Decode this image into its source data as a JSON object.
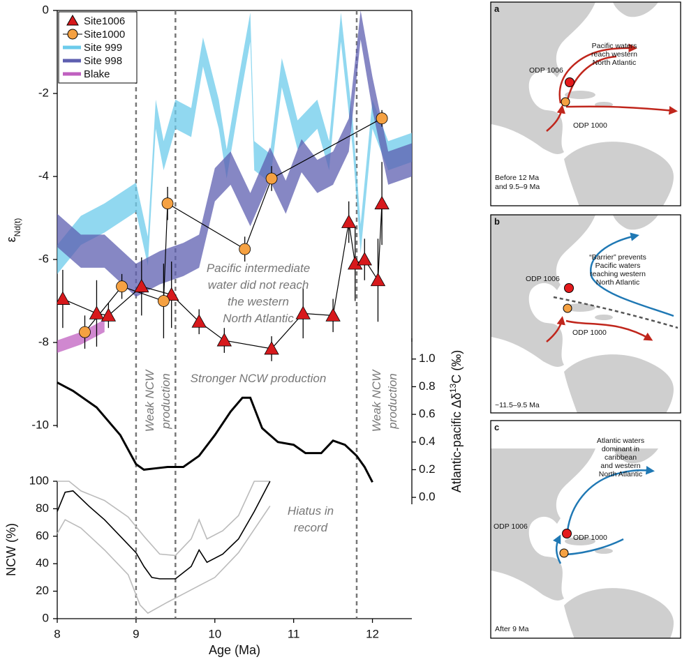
{
  "chart_data": [
    {
      "type": "line",
      "ylabel": {
        "main": "ε",
        "sub": "Nd(t)"
      },
      "xlim": [
        8,
        12.5
      ],
      "ylim": [
        -10.05,
        0
      ],
      "yticks": [
        0,
        -2,
        -4,
        -6,
        -8,
        -10
      ],
      "legend": "upper left",
      "vlines": [
        9.0,
        9.5,
        11.8
      ],
      "series": [
        {
          "name": "Site 999",
          "color": "#6ccbeb",
          "x": [
            8.0,
            8.3,
            8.6,
            9.0,
            9.15,
            9.25,
            9.35,
            9.5,
            9.7,
            9.85,
            10.05,
            10.15,
            10.3,
            10.45,
            10.5,
            10.7,
            10.85,
            11.05,
            11.3,
            11.45,
            11.6,
            11.75,
            11.85,
            12.0,
            12.2,
            12.5
          ],
          "lower": [
            -6.35,
            -5.65,
            -5.35,
            -4.85,
            -6.15,
            -2.85,
            -3.85,
            -2.85,
            -3.05,
            -1.35,
            -2.85,
            -4.05,
            -2.35,
            -0.75,
            -3.85,
            -4.15,
            -1.85,
            -3.35,
            -2.85,
            -3.85,
            -0.75,
            -3.35,
            -5.85,
            -2.85,
            -3.85,
            -3.65
          ],
          "upper": [
            -5.65,
            -4.95,
            -4.65,
            -4.15,
            -5.45,
            -2.15,
            -3.15,
            -2.15,
            -2.35,
            -0.65,
            -2.15,
            -3.35,
            -1.65,
            -0.05,
            -3.15,
            -3.45,
            -1.15,
            -2.65,
            -2.15,
            -3.15,
            -0.05,
            -2.65,
            -5.15,
            -2.15,
            -3.15,
            -2.95
          ]
        },
        {
          "name": "Site 998",
          "color": "#5e5fb0",
          "x": [
            8.0,
            8.3,
            8.6,
            9.0,
            9.3,
            9.6,
            9.8,
            10.0,
            10.2,
            10.45,
            10.7,
            10.9,
            11.1,
            11.3,
            11.5,
            11.7,
            11.85,
            12.0,
            12.2,
            12.5
          ],
          "lower": [
            -5.7,
            -6.2,
            -6.2,
            -6.9,
            -6.6,
            -6.4,
            -6.2,
            -4.6,
            -4.2,
            -5.2,
            -4.1,
            -4.9,
            -3.9,
            -4.4,
            -4.2,
            -3.4,
            -0.7,
            -2.4,
            -4.2,
            -4.0
          ],
          "upper": [
            -4.9,
            -5.4,
            -5.4,
            -6.1,
            -5.8,
            -5.6,
            -5.4,
            -3.8,
            -3.4,
            -4.4,
            -3.3,
            -4.1,
            -3.1,
            -3.6,
            -3.4,
            -2.6,
            0,
            -1.6,
            -3.4,
            -3.2
          ]
        },
        {
          "name": "Blake",
          "color": "#c060c0",
          "x": [
            8.0,
            8.3,
            8.6
          ],
          "lower": [
            -8.25,
            -8.05,
            -7.75
          ],
          "upper": [
            -7.95,
            -7.75,
            -7.45
          ]
        },
        {
          "name": "Site1006",
          "color": "#d7191c",
          "line_color": "#000000",
          "marker": "triangle",
          "x": [
            8.07,
            8.5,
            8.65,
            9.07,
            9.45,
            9.8,
            10.12,
            10.72,
            11.12,
            11.5,
            11.7,
            11.78,
            11.9,
            12.07,
            12.12
          ],
          "values": [
            -6.95,
            -7.3,
            -7.35,
            -6.65,
            -6.85,
            -7.5,
            -7.95,
            -8.15,
            -7.3,
            -7.35,
            -5.1,
            -6.1,
            -6.0,
            -6.5,
            -4.65
          ],
          "errors": [
            0.7,
            0.8,
            0.3,
            0.7,
            0.8,
            0.3,
            0.3,
            0.3,
            0.6,
            0.4,
            0.5,
            0.9,
            0.5,
            1.0,
            1.0
          ]
        },
        {
          "name": "Site1000",
          "color": "#f5a142",
          "line_color": "#000000",
          "marker": "circle",
          "x": [
            8.35,
            8.82,
            9.35,
            9.4,
            10.38,
            10.72,
            12.12
          ],
          "values": [
            -7.75,
            -6.65,
            -7.0,
            -4.65,
            -5.75,
            -4.05,
            -2.6
          ],
          "errors": [
            0.4,
            0.3,
            0.9,
            0.4,
            0.3,
            0.3,
            0.2
          ]
        }
      ],
      "annotations": [
        {
          "text": [
            "Pacific intermediate",
            "water did not reach",
            "the western",
            "North Atlantic"
          ]
        },
        {
          "text": [
            "Stronger NCW production"
          ]
        },
        {
          "text": [
            "Weak NCW",
            "production"
          ]
        },
        {
          "text": [
            "Weak NCW",
            "production"
          ]
        }
      ]
    },
    {
      "type": "line",
      "ylabel": {
        "main": "Atlantic-pacific Δδ",
        "sup": "13",
        "end": "C (‰)"
      },
      "xlim": [
        8,
        12.5
      ],
      "ylim": [
        -0.05,
        1.15
      ],
      "yticks": [
        {
          "value": 1.0,
          "label": "1.0"
        },
        0.8,
        0.6,
        0.4,
        0.2,
        {
          "value": 0.0,
          "label": "0.0"
        }
      ],
      "series": [
        {
          "color": "#000000",
          "x": [
            8.0,
            8.2,
            8.5,
            8.8,
            9.0,
            9.1,
            9.25,
            9.4,
            9.6,
            9.8,
            10.0,
            10.2,
            10.35,
            10.45,
            10.6,
            10.8,
            11.0,
            11.15,
            11.35,
            11.5,
            11.65,
            11.8,
            11.9,
            12.0
          ],
          "values": [
            0.83,
            0.77,
            0.65,
            0.45,
            0.24,
            0.2,
            0.21,
            0.22,
            0.22,
            0.3,
            0.45,
            0.62,
            0.72,
            0.72,
            0.5,
            0.4,
            0.38,
            0.32,
            0.32,
            0.41,
            0.38,
            0.3,
            0.22,
            0.11
          ]
        }
      ]
    },
    {
      "type": "line",
      "ylabel": "NCW (%)",
      "xlabel": "Age (Ma)",
      "xlim": [
        8,
        12.5
      ],
      "xticks": [
        8,
        9,
        10,
        11,
        12
      ],
      "ylim": [
        0,
        100
      ],
      "yticks": [
        0,
        20,
        40,
        60,
        80,
        100
      ],
      "series": [
        {
          "color": "#bbbbbb",
          "x": [
            8.0,
            8.15,
            8.3,
            8.6,
            8.9,
            9.1,
            9.3,
            9.5,
            9.7,
            9.8,
            9.9,
            10.1,
            10.3,
            10.5,
            10.7
          ],
          "values": [
            100,
            100,
            93,
            86,
            74,
            60,
            47,
            46,
            58,
            72,
            58,
            64,
            75,
            100,
            100
          ]
        },
        {
          "color": "#bbbbbb",
          "x": [
            8.0,
            8.1,
            8.3,
            8.6,
            8.9,
            9.05,
            9.15,
            9.4,
            9.6,
            9.8,
            10.0,
            10.3,
            10.7
          ],
          "values": [
            62,
            72,
            66,
            50,
            32,
            10,
            4,
            12,
            18,
            24,
            30,
            48,
            82
          ]
        },
        {
          "color": "#000000",
          "x": [
            8.0,
            8.1,
            8.2,
            8.4,
            8.6,
            8.8,
            9.0,
            9.1,
            9.2,
            9.3,
            9.5,
            9.7,
            9.8,
            9.9,
            10.1,
            10.3,
            10.5,
            10.7
          ],
          "values": [
            78,
            92,
            93,
            82,
            72,
            60,
            48,
            38,
            30,
            29,
            29,
            38,
            50,
            41,
            47,
            58,
            78,
            100
          ]
        }
      ],
      "annotations": [
        {
          "text": [
            "Hiatus in",
            "record"
          ]
        }
      ]
    }
  ],
  "panels": [
    {
      "letter": "a",
      "odp1006": "ODP 1006",
      "odp1000": "ODP 1000",
      "text": [
        "Pacific waters",
        "reach western",
        "North Atlantic"
      ],
      "caption": [
        "Before 12 Ma",
        "and 9.5–9 Ma"
      ]
    },
    {
      "letter": "b",
      "odp1006": "ODP 1006",
      "odp1000": "ODP 1000",
      "text": [
        "“Barrier” prevents",
        "Pacific waters",
        "reaching western",
        "North Atlantic"
      ],
      "caption": [
        "~11.5–9.5 Ma"
      ]
    },
    {
      "letter": "c",
      "odp1006": "ODP 1006",
      "odp1000": "ODP 1000",
      "text": [
        "Atlantic waters",
        "dominant in",
        "caribbean",
        "and western",
        "North Atlantic"
      ],
      "caption": [
        "After 9 Ma"
      ]
    }
  ]
}
